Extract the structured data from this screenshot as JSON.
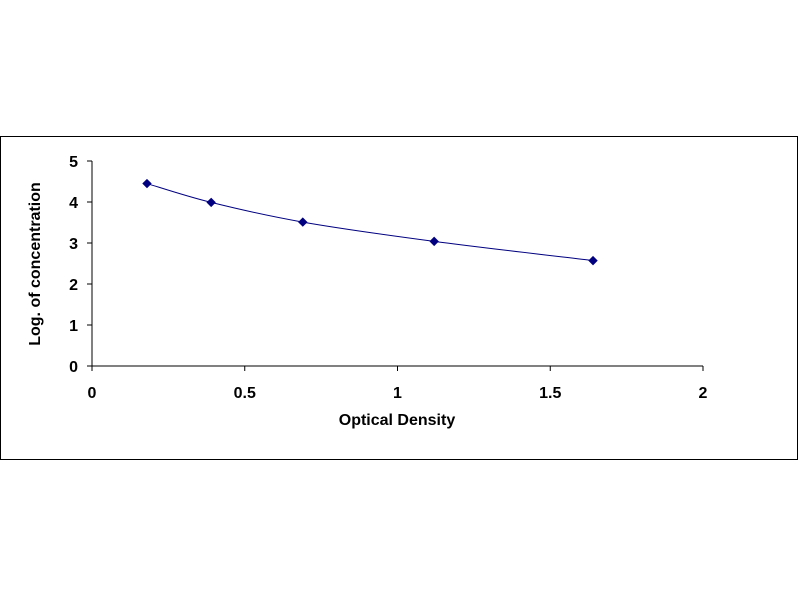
{
  "chart_data": {
    "type": "scatter",
    "title": "",
    "xlabel": "Optical Density",
    "ylabel": "Log. of concentration",
    "xlim": [
      0,
      2
    ],
    "ylim": [
      0,
      5
    ],
    "x_ticks": [
      "0",
      "0.5",
      "1",
      "1.5",
      "2"
    ],
    "y_ticks": [
      "0",
      "1",
      "2",
      "3",
      "4",
      "5"
    ],
    "grid": false,
    "legend": "none",
    "line": "smooth",
    "marker": "diamond",
    "series_color": "#000080",
    "points": [
      {
        "x": 0.18,
        "y": 4.45
      },
      {
        "x": 0.39,
        "y": 3.99
      },
      {
        "x": 0.69,
        "y": 3.51
      },
      {
        "x": 1.12,
        "y": 3.04
      },
      {
        "x": 1.64,
        "y": 2.57
      }
    ]
  }
}
